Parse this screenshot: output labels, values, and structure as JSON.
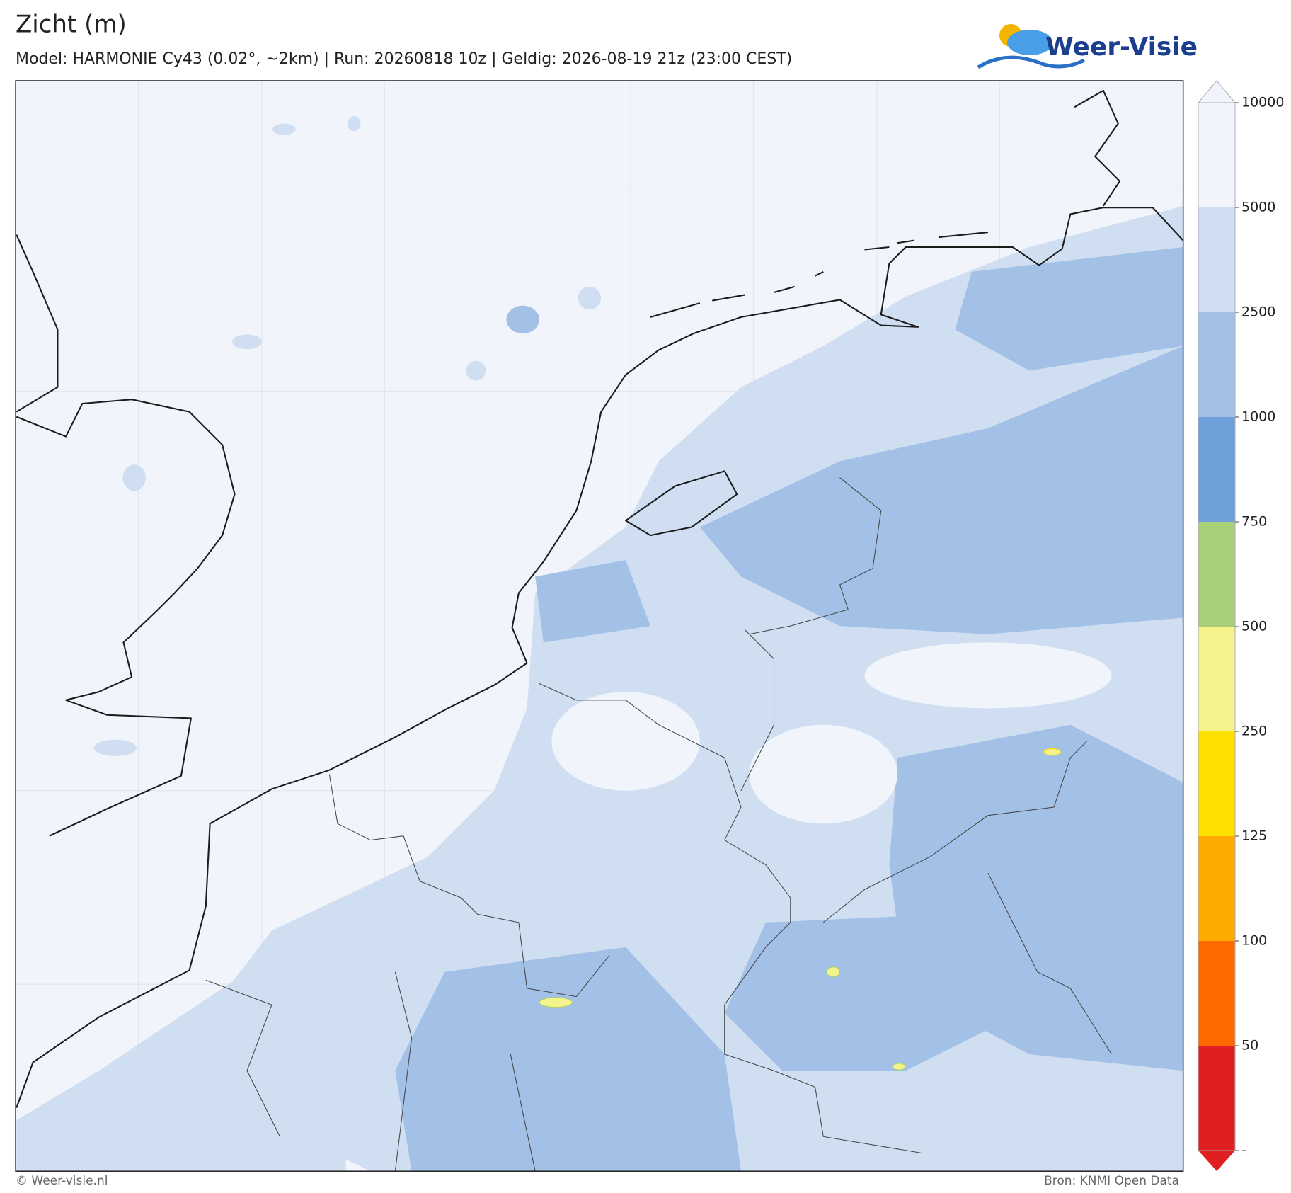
{
  "header": {
    "title": "Zicht (m)",
    "subtitle": "Model: HARMONIE Cy43 (0.02°, ~2km)  |  Run: 20260818 10z  |  Geldig: 2026-08-19 21z (23:00 CEST)"
  },
  "logo": {
    "text": "Weer-Visie"
  },
  "colorbar": {
    "levels": [
      10000,
      5000,
      2500,
      1000,
      750,
      500,
      250,
      125,
      100,
      50
    ],
    "bottom_label": "-",
    "colors": [
      "#f1f5fb",
      "#cfdff1",
      "#a3c0e7",
      "#6f9fd9",
      "#a9cf79",
      "#f5f38b",
      "#fde000",
      "#ffaa00",
      "#ff6a00",
      "#e02020"
    ]
  },
  "footer": {
    "left": "© Weer-visie.nl",
    "right": "Bron: KNMI Open Data"
  }
}
